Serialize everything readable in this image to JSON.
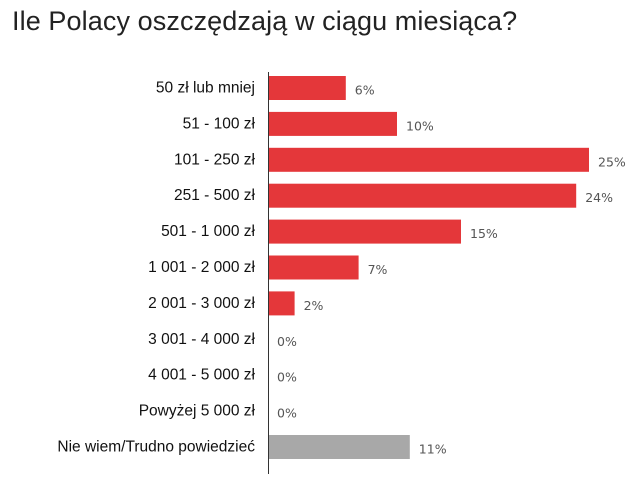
{
  "chart_data": {
    "type": "bar",
    "orientation": "horizontal",
    "title": "Ile Polacy oszczędzają w ciągu miesiąca?",
    "categories": [
      "50 zł lub mniej",
      "51 - 100 zł",
      "101 - 250 zł",
      "251 - 500 zł",
      "501 - 1 000 zł",
      "1 001 - 2 000 zł",
      "2 001 - 3 000 zł",
      "3 001 - 4 000 zł",
      "4 001 - 5 000 zł",
      "Powyżej 5 000 zł",
      "Nie wiem/Trudno powiedzieć"
    ],
    "values": [
      6,
      10,
      25,
      24,
      15,
      7,
      2,
      0,
      0,
      0,
      11
    ],
    "value_labels": [
      "6%",
      "10%",
      "25%",
      "24%",
      "15%",
      "7%",
      "2%",
      "0%",
      "0%",
      "0%",
      "11%"
    ],
    "bar_colors": [
      "#e4373a",
      "#e4373a",
      "#e4373a",
      "#e4373a",
      "#e4373a",
      "#e4373a",
      "#e4373a",
      "#e4373a",
      "#e4373a",
      "#e4373a",
      "#a8a8a8"
    ],
    "xlim": [
      0,
      25
    ],
    "grid": false,
    "legend": "none"
  }
}
